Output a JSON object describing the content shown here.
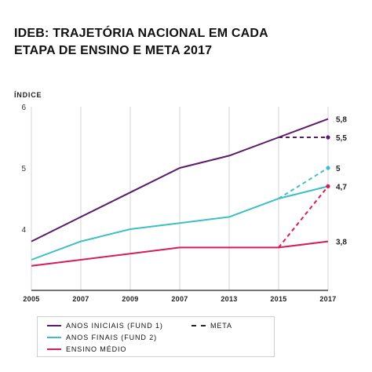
{
  "title_lines": [
    "IDEB: TRAJETÓRIA NACIONAL EM CADA",
    "ETAPA DE ENSINO E META 2017"
  ],
  "chart_data": {
    "type": "line",
    "title": "IDEB: TRAJETÓRIA NACIONAL EM CADA ETAPA DE ENSINO E META 2017",
    "ylabel": "ÍNDICE",
    "xlabel": "",
    "ylim": [
      3,
      6
    ],
    "yticks": [
      "4",
      "5",
      "6"
    ],
    "categories": [
      "2005",
      "2007",
      "2009",
      "2007",
      "2013",
      "2015",
      "2017"
    ],
    "series": [
      {
        "name": "ANOS INICIAIS (FUND 1)",
        "color": "#5c1a6b",
        "values": [
          3.8,
          4.2,
          4.6,
          5.0,
          5.2,
          5.5,
          5.8
        ]
      },
      {
        "name": "ANOS FINAIS (FUND 2)",
        "color": "#3dbfc4",
        "values": [
          3.5,
          3.8,
          4.0,
          4.1,
          4.2,
          4.5,
          4.7
        ]
      },
      {
        "name": "ENSINO MÉDIO",
        "color": "#d81b5c",
        "values": [
          3.4,
          3.5,
          3.6,
          3.7,
          3.7,
          3.7,
          3.8
        ]
      }
    ],
    "meta": {
      "name": "META",
      "segments": [
        {
          "series": "ANOS INICIAIS (FUND 1)",
          "from": 5.5,
          "to": 5.5
        },
        {
          "series": "ANOS FINAIS (FUND 2)",
          "from": 4.5,
          "to": 5.0
        },
        {
          "series": "ENSINO MÉDIO",
          "from": 3.7,
          "to": 4.7
        }
      ]
    },
    "end_labels": [
      "5,8",
      "5,5",
      "5",
      "4,7",
      "3,8"
    ],
    "grid": "vertical",
    "legend_position": "bottom"
  },
  "legend": {
    "fund1": "ANOS INICIAIS (FUND 1)",
    "fund2": "ANOS FINAIS (FUND 2)",
    "medio": "ENSINO MÉDIO",
    "meta": "META"
  },
  "colors": {
    "fund1": "#5c1a6b",
    "fund2": "#3dbfc4",
    "medio": "#d81b5c",
    "meta": "#5c1a6b"
  }
}
